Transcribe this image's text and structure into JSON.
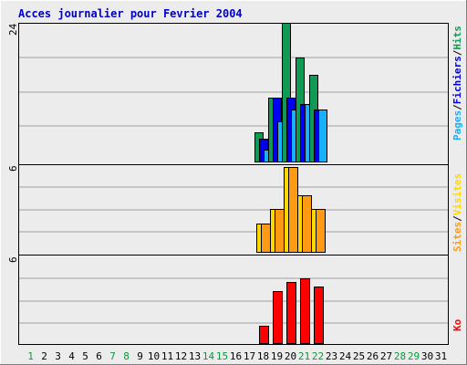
{
  "title": "Acces journalier pour Fevrier 2004",
  "days": [
    "1",
    "2",
    "3",
    "4",
    "5",
    "6",
    "7",
    "8",
    "9",
    "10",
    "11",
    "12",
    "13",
    "14",
    "15",
    "16",
    "17",
    "18",
    "19",
    "20",
    "21",
    "22",
    "23",
    "24",
    "25",
    "26",
    "27",
    "28",
    "29",
    "30",
    "31"
  ],
  "weekend_days": [
    "1",
    "7",
    "8",
    "14",
    "15",
    "21",
    "22",
    "28",
    "29"
  ],
  "colors": {
    "title": "#0000cc",
    "hits": "#129955",
    "files": "#0000ee",
    "pages": "#18b0ff",
    "visits": "#ffd800",
    "sites": "#ff9a14",
    "kbytes": "#ff0000",
    "day_normal": "#000000",
    "day_weekend": "#0a9a3a",
    "sep": "#000000"
  },
  "legend": {
    "panel1": [
      "Pages",
      "Fichiers",
      "Hits"
    ],
    "panel2": [
      "Sites",
      "Visites"
    ],
    "panel3": [
      "Ko"
    ],
    "sep": "/"
  },
  "chart_data": [
    {
      "type": "bar",
      "name": "panel1",
      "ylim": [
        0,
        24
      ],
      "ymax_label": "24",
      "x": [
        "18",
        "19",
        "20",
        "21",
        "22"
      ],
      "series": [
        {
          "name": "Hits",
          "color": "#129955",
          "values": [
            5,
            11,
            24,
            18,
            15
          ]
        },
        {
          "name": "Fichiers",
          "color": "#0000ee",
          "values": [
            4,
            11,
            11,
            10,
            9
          ]
        },
        {
          "name": "Pages",
          "color": "#18b0ff",
          "values": [
            2,
            7,
            9,
            10,
            9
          ]
        }
      ]
    },
    {
      "type": "bar",
      "name": "panel2",
      "ylim": [
        0,
        6
      ],
      "ymax_label": "6",
      "x": [
        "18",
        "19",
        "20",
        "21",
        "22"
      ],
      "series": [
        {
          "name": "Visites",
          "color": "#ffd800",
          "values": [
            2,
            3,
            6,
            4,
            3
          ]
        },
        {
          "name": "Sites",
          "color": "#ff9a14",
          "values": [
            2,
            3,
            6,
            4,
            3
          ]
        }
      ]
    },
    {
      "type": "bar",
      "name": "panel3",
      "ylim": [
        0,
        6
      ],
      "ymax_label": "6",
      "x": [
        "18",
        "19",
        "20",
        "21",
        "22"
      ],
      "series": [
        {
          "name": "Ko",
          "color": "#ff0000",
          "values": [
            1.2,
            3.7,
            4.3,
            4.6,
            4.0
          ]
        }
      ]
    }
  ]
}
